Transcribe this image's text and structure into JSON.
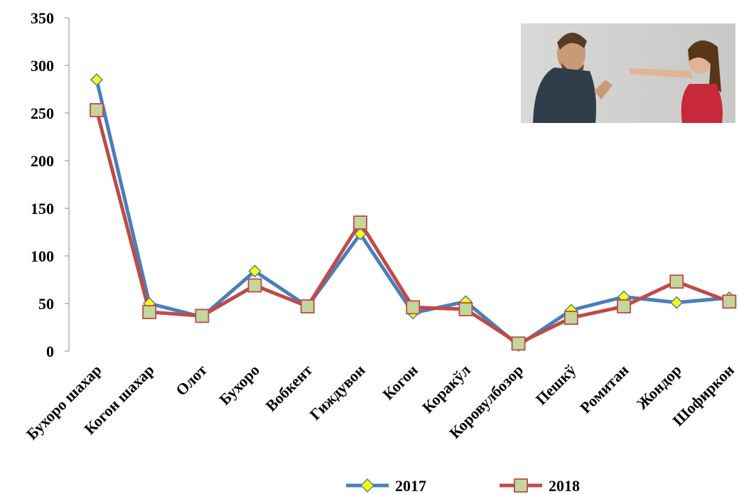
{
  "chart_data": {
    "type": "line",
    "categories": [
      "Бухоро шахар",
      "Когон шахар",
      "Олот",
      "Бухоро",
      "Вобкент",
      "Гиждувон",
      "Когон",
      "Коракўл",
      "Коровулбозор",
      "Пешкў",
      "Ромитан",
      "Жондор",
      "Шофиркон"
    ],
    "series": [
      {
        "name": "2017",
        "values": [
          285,
          50,
          36,
          84,
          47,
          123,
          40,
          52,
          6,
          43,
          57,
          51,
          56
        ],
        "color": "#4A7EBB",
        "marker": "diamond",
        "marker_color": "#FFFF00"
      },
      {
        "name": "2018",
        "values": [
          253,
          41,
          37,
          69,
          47,
          135,
          46,
          44,
          8,
          35,
          47,
          73,
          52
        ],
        "color": "#BE4B48",
        "marker": "square",
        "marker_color": "#C3D69B"
      }
    ],
    "ylim": [
      0,
      350
    ],
    "yticks": [
      0,
      50,
      100,
      150,
      200,
      250,
      300,
      350
    ],
    "grid": false,
    "legend_position": "bottom"
  },
  "photo": {
    "description_icon": "arguing-couple-photo"
  }
}
